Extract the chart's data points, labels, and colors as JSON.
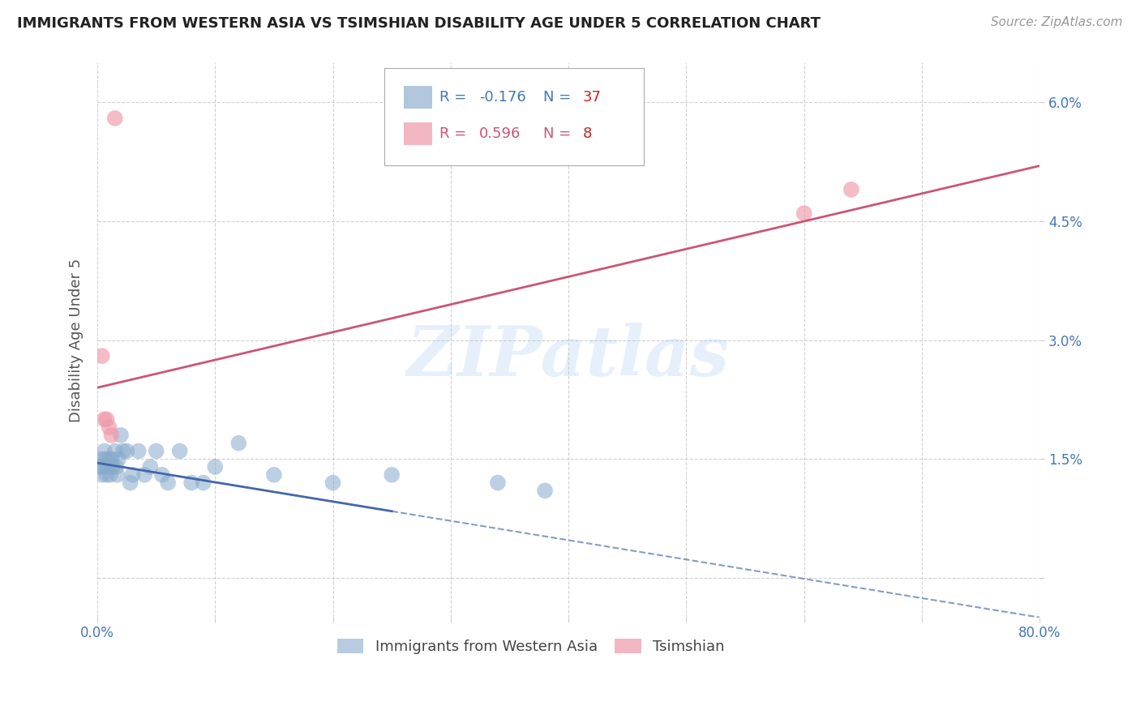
{
  "title": "IMMIGRANTS FROM WESTERN ASIA VS TSIMSHIAN DISABILITY AGE UNDER 5 CORRELATION CHART",
  "source": "Source: ZipAtlas.com",
  "ylabel": "Disability Age Under 5",
  "xlim": [
    0.0,
    0.8
  ],
  "ylim": [
    -0.005,
    0.065
  ],
  "yticks": [
    0.0,
    0.015,
    0.03,
    0.045,
    0.06
  ],
  "ytick_labels": [
    "",
    "1.5%",
    "3.0%",
    "4.5%",
    "6.0%"
  ],
  "xticks": [
    0.0,
    0.1,
    0.2,
    0.3,
    0.4,
    0.5,
    0.6,
    0.7,
    0.8
  ],
  "xtick_labels": [
    "0.0%",
    "",
    "",
    "",
    "",
    "",
    "",
    "",
    "80.0%"
  ],
  "legend_blue_r": "-0.176",
  "legend_blue_n": "37",
  "legend_pink_r": "0.596",
  "legend_pink_n": "8",
  "blue_color": "#88AACC",
  "pink_color": "#EE99AA",
  "axis_label_color": "#4477BB",
  "trend_blue_color": "#4466AA",
  "trend_pink_color": "#CC5577",
  "watermark": "ZIPatlas",
  "blue_x": [
    0.002,
    0.003,
    0.004,
    0.005,
    0.006,
    0.007,
    0.008,
    0.009,
    0.01,
    0.011,
    0.012,
    0.013,
    0.015,
    0.016,
    0.017,
    0.018,
    0.02,
    0.022,
    0.025,
    0.028,
    0.03,
    0.035,
    0.04,
    0.045,
    0.05,
    0.055,
    0.06,
    0.07,
    0.08,
    0.09,
    0.1,
    0.12,
    0.15,
    0.2,
    0.25,
    0.34,
    0.38
  ],
  "blue_y": [
    0.014,
    0.015,
    0.013,
    0.014,
    0.016,
    0.015,
    0.013,
    0.014,
    0.015,
    0.013,
    0.015,
    0.014,
    0.016,
    0.014,
    0.013,
    0.015,
    0.018,
    0.016,
    0.016,
    0.012,
    0.013,
    0.016,
    0.013,
    0.014,
    0.016,
    0.013,
    0.012,
    0.016,
    0.012,
    0.012,
    0.014,
    0.017,
    0.013,
    0.012,
    0.013,
    0.012,
    0.011
  ],
  "pink_x": [
    0.004,
    0.006,
    0.008,
    0.01,
    0.012,
    0.015,
    0.6,
    0.64
  ],
  "pink_y": [
    0.028,
    0.02,
    0.02,
    0.019,
    0.018,
    0.058,
    0.046,
    0.049
  ],
  "blue_trend_x0": 0.0,
  "blue_trend_x_solid_end": 0.25,
  "blue_trend_x1": 0.8,
  "blue_trend_y0": 0.0145,
  "blue_trend_y1": -0.005,
  "pink_trend_x0": 0.0,
  "pink_trend_x1": 0.8,
  "pink_trend_y0": 0.024,
  "pink_trend_y1": 0.052,
  "grid_color": "#CCCCCC",
  "title_fontsize": 13,
  "tick_fontsize": 12,
  "legend_fontsize": 13
}
